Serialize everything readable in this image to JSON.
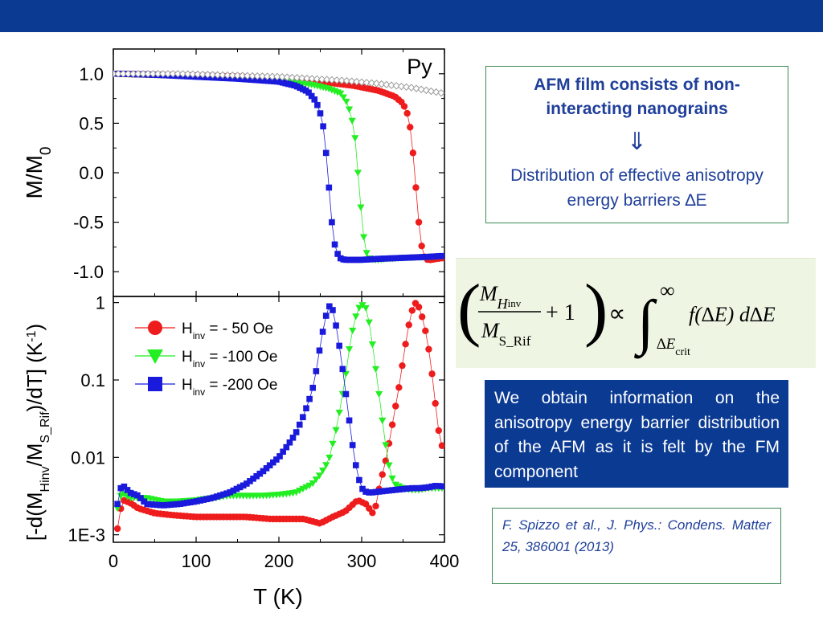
{
  "colors": {
    "header_bar": "#0b3a93",
    "red": "#ee1c1c",
    "green": "#22ee22",
    "blue": "#1a1adc",
    "gray": "#9a9a9a",
    "box_border": "#3c8a55",
    "text_blue": "#1f3f9a",
    "formula_bg": "#eef6e3"
  },
  "chart_data": [
    {
      "type": "line",
      "panel": "top",
      "ylabel": "M/M",
      "ylabel_sub": "0",
      "annotation": "Py",
      "xlim": [
        0,
        400
      ],
      "ylim": [
        -1.25,
        1.25
      ],
      "yticks": [
        1.0,
        0.5,
        0.0,
        -0.5,
        -1.0
      ],
      "ytick_labels": [
        "1.0",
        "0.5",
        "0.0",
        "-0.5",
        "-1.0"
      ],
      "series": [
        {
          "name": "H_inv = - 50 Oe",
          "color_key": "red",
          "marker": "circle",
          "x": [
            5,
            50,
            100,
            150,
            200,
            250,
            290,
            320,
            340,
            350,
            355,
            360,
            362,
            364,
            366,
            368,
            370,
            372,
            374,
            376,
            378,
            380,
            384,
            390,
            400
          ],
          "y": [
            1.0,
            0.99,
            0.98,
            0.97,
            0.95,
            0.92,
            0.88,
            0.83,
            0.77,
            0.7,
            0.6,
            0.4,
            0.2,
            0.0,
            -0.2,
            -0.4,
            -0.6,
            -0.72,
            -0.8,
            -0.85,
            -0.87,
            -0.88,
            -0.88,
            -0.87,
            -0.86
          ]
        },
        {
          "name": "H_inv = -100 Oe",
          "color_key": "green",
          "marker": "triangle-down",
          "x": [
            5,
            50,
            100,
            150,
            200,
            240,
            260,
            275,
            283,
            288,
            292,
            294,
            296,
            298,
            300,
            302,
            304,
            306,
            308,
            310,
            315,
            320,
            330,
            350,
            380,
            400
          ],
          "y": [
            1.0,
            0.99,
            0.98,
            0.96,
            0.93,
            0.89,
            0.85,
            0.8,
            0.7,
            0.55,
            0.35,
            0.15,
            -0.05,
            -0.25,
            -0.45,
            -0.62,
            -0.74,
            -0.81,
            -0.85,
            -0.87,
            -0.88,
            -0.88,
            -0.87,
            -0.86,
            -0.85,
            -0.84
          ]
        },
        {
          "name": "H_inv = -200 Oe",
          "color_key": "blue",
          "marker": "square",
          "x": [
            5,
            50,
            100,
            150,
            200,
            220,
            235,
            245,
            250,
            254,
            256,
            258,
            260,
            262,
            264,
            266,
            268,
            270,
            272,
            275,
            280,
            290,
            300,
            320,
            350,
            380,
            400
          ],
          "y": [
            1.0,
            0.99,
            0.97,
            0.95,
            0.92,
            0.88,
            0.82,
            0.72,
            0.6,
            0.45,
            0.3,
            0.1,
            -0.1,
            -0.3,
            -0.5,
            -0.65,
            -0.75,
            -0.8,
            -0.84,
            -0.87,
            -0.88,
            -0.88,
            -0.88,
            -0.87,
            -0.86,
            -0.85,
            -0.84
          ]
        },
        {
          "name": "Py",
          "color_key": "gray",
          "marker": "diamond-open",
          "x": [
            0,
            40,
            80,
            120,
            160,
            200,
            240,
            280,
            320,
            360,
            380,
            400
          ],
          "y": [
            1.0,
            1.0,
            1.0,
            0.99,
            0.98,
            0.97,
            0.95,
            0.93,
            0.9,
            0.86,
            0.83,
            0.8
          ]
        }
      ]
    },
    {
      "type": "line",
      "panel": "bottom",
      "yscale": "log",
      "ylabel": "[-d(M",
      "ylabel_sub1": "Hinv",
      "ylabel_mid": "/M",
      "ylabel_sub2": "S_Rif",
      "ylabel_end": ")/dT] (K",
      "ylabel_sup": "-1",
      "ylabel_close": ")",
      "xlabel": "T (K)",
      "xlim": [
        0,
        400
      ],
      "ylim": [
        0.0008,
        1.2
      ],
      "xticks": [
        0,
        100,
        200,
        300,
        400
      ],
      "xtick_labels": [
        "0",
        "100",
        "200",
        "300",
        "400"
      ],
      "yticks": [
        1,
        0.1,
        0.01,
        0.001
      ],
      "ytick_labels": [
        "1",
        "0.1",
        "0.01",
        "1E-3"
      ],
      "legend_position": "top-left",
      "series": [
        {
          "name": "H_inv = - 50 Oe",
          "legend_main": "H",
          "legend_sub": "inv",
          "legend_rest": " = - 50 Oe",
          "color_key": "red",
          "marker": "circle",
          "x": [
            5,
            8,
            12,
            20,
            30,
            50,
            70,
            100,
            130,
            160,
            190,
            210,
            230,
            250,
            255,
            265,
            280,
            295,
            305,
            315,
            320,
            325,
            330,
            335,
            340,
            345,
            350,
            355,
            360,
            365,
            370,
            375,
            380,
            385,
            390,
            395,
            400
          ],
          "y": [
            0.0012,
            0.002,
            0.0028,
            0.0026,
            0.0022,
            0.0019,
            0.0018,
            0.0017,
            0.0017,
            0.0017,
            0.0016,
            0.0016,
            0.0016,
            0.0014,
            0.0015,
            0.0017,
            0.002,
            0.0028,
            0.0025,
            0.0018,
            0.0035,
            0.006,
            0.01,
            0.02,
            0.04,
            0.08,
            0.18,
            0.4,
            0.75,
            0.98,
            0.85,
            0.55,
            0.3,
            0.12,
            0.04,
            0.015,
            0.013
          ]
        },
        {
          "name": "H_inv = -100 Oe",
          "legend_main": "H",
          "legend_sub": "inv",
          "legend_rest": " = -100 Oe",
          "color_key": "green",
          "marker": "triangle-down",
          "x": [
            5,
            10,
            20,
            40,
            60,
            80,
            100,
            120,
            140,
            160,
            180,
            200,
            220,
            240,
            250,
            260,
            265,
            270,
            275,
            280,
            285,
            290,
            295,
            300,
            305,
            310,
            315,
            320,
            325,
            330,
            335,
            340,
            350,
            360,
            370,
            380,
            390,
            400
          ],
          "y": [
            0.0022,
            0.0035,
            0.003,
            0.003,
            0.0027,
            0.0027,
            0.0028,
            0.003,
            0.0032,
            0.0032,
            0.0032,
            0.0033,
            0.0035,
            0.0045,
            0.006,
            0.009,
            0.015,
            0.025,
            0.05,
            0.1,
            0.25,
            0.5,
            0.8,
            0.95,
            0.85,
            0.5,
            0.2,
            0.08,
            0.03,
            0.012,
            0.006,
            0.0045,
            0.004,
            0.0038,
            0.0038,
            0.004,
            0.004,
            0.004
          ]
        },
        {
          "name": "H_inv = -200 Oe",
          "legend_main": "H",
          "legend_sub": "inv",
          "legend_rest": " = -200 Oe",
          "color_key": "blue",
          "marker": "square",
          "x": [
            5,
            10,
            15,
            20,
            30,
            40,
            60,
            80,
            100,
            120,
            140,
            160,
            180,
            200,
            210,
            220,
            230,
            240,
            245,
            250,
            255,
            260,
            265,
            270,
            275,
            280,
            285,
            290,
            295,
            300,
            305,
            310,
            320,
            330,
            340,
            350,
            360,
            370,
            380,
            390,
            400
          ],
          "y": [
            0.0025,
            0.0045,
            0.004,
            0.0035,
            0.0032,
            0.0025,
            0.0024,
            0.0025,
            0.0027,
            0.003,
            0.0035,
            0.0045,
            0.0065,
            0.01,
            0.014,
            0.02,
            0.035,
            0.07,
            0.13,
            0.28,
            0.55,
            0.92,
            0.8,
            0.45,
            0.2,
            0.08,
            0.03,
            0.012,
            0.006,
            0.004,
            0.0036,
            0.0035,
            0.0036,
            0.0037,
            0.0038,
            0.0039,
            0.004,
            0.004,
            0.0041,
            0.0043,
            0.0042
          ]
        }
      ]
    }
  ],
  "info_box": {
    "title": "AFM film consists of non-interacting nanograins",
    "arrow": "⇓",
    "text": "Distribution of effective anisotropy energy barriers ∆E"
  },
  "formula": {
    "num_main": "M",
    "num_sub": "H",
    "num_subsub": "inv",
    "den_main": "M",
    "den_sub": "S_Rif",
    "plus_one": "+ 1",
    "propto": "∝",
    "integral": "∫",
    "upper_limit": "∞",
    "lower_limit": "∆E",
    "lower_limit_sub": "crit",
    "integrand": "f(∆E) d∆E"
  },
  "result_box": {
    "text": "We obtain information on the anisotropy energy barrier distribution of the AFM as it is felt by the FM component"
  },
  "citation": {
    "text": "F. Spizzo et al., J. Phys.: Condens. Matter 25, 386001 (2013)"
  }
}
